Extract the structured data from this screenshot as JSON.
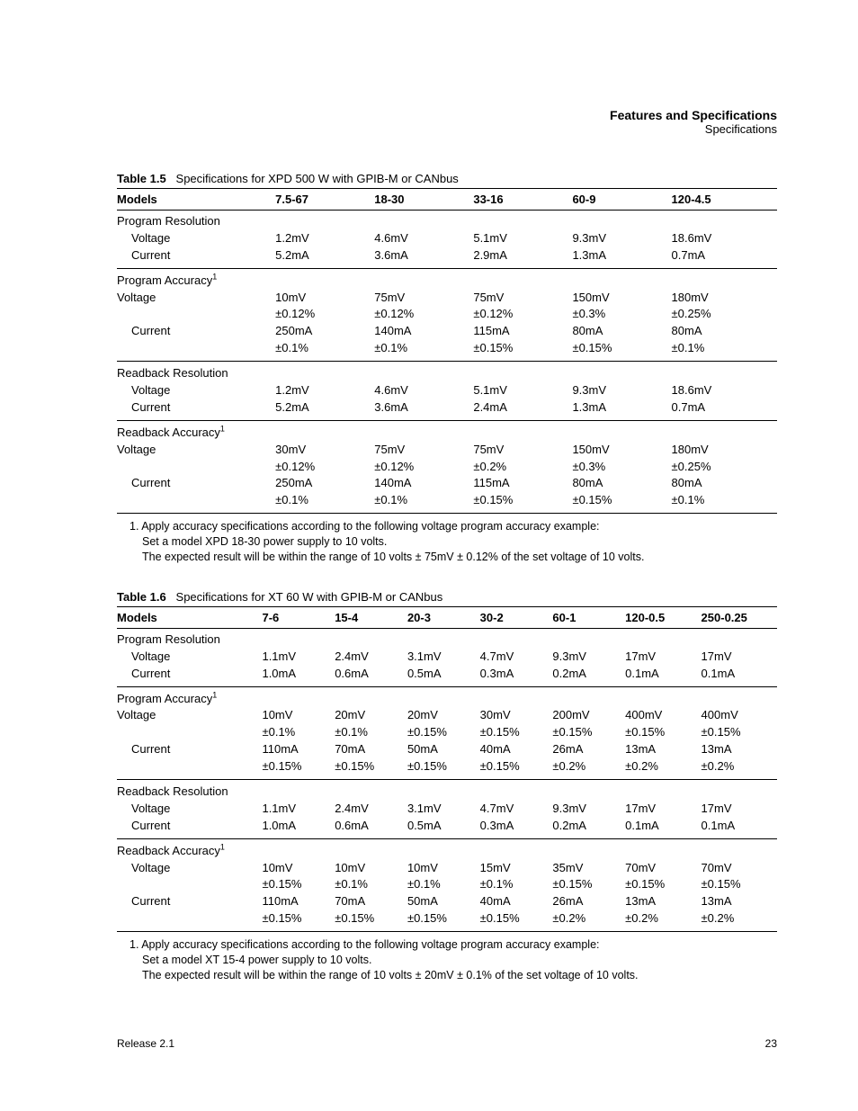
{
  "header": {
    "title": "Features and Specifications",
    "subtitle": "Specifications"
  },
  "table15": {
    "caption_prefix": "Table 1.5",
    "caption_text": "Specifications for XPD 500 W with GPIB-M or CANbus",
    "col_widths": [
      "24%",
      "15%",
      "15%",
      "15%",
      "15%",
      "16%"
    ],
    "headers": [
      "Models",
      "7.5-67",
      "18-30",
      "33-16",
      "60-9",
      "120-4.5"
    ],
    "sections": [
      {
        "title": "Program Resolution",
        "title_indent": false,
        "sup": "",
        "rows": [
          {
            "label": "Voltage",
            "indent": true,
            "lines": [
              [
                "1.2mV",
                "4.6mV",
                "5.1mV",
                "9.3mV",
                "18.6mV"
              ]
            ]
          },
          {
            "label": "Current",
            "indent": true,
            "lines": [
              [
                "5.2mA",
                "3.6mA",
                "2.9mA",
                "1.3mA",
                "0.7mA"
              ]
            ]
          }
        ],
        "sep": "light"
      },
      {
        "title": "Program Accuracy",
        "title_indent": false,
        "sup": "1",
        "rows": [
          {
            "label": "Voltage",
            "indent": false,
            "lines": [
              [
                "10mV",
                "75mV",
                "75mV",
                "150mV",
                "180mV"
              ],
              [
                "±0.12%",
                "±0.12%",
                "±0.12%",
                "±0.3%",
                "±0.25%"
              ]
            ]
          },
          {
            "label": "Current",
            "indent": true,
            "lines": [
              [
                "250mA",
                "140mA",
                "115mA",
                "80mA",
                "80mA"
              ],
              [
                "±0.1%",
                "±0.1%",
                "±0.15%",
                "±0.15%",
                "±0.1%"
              ]
            ]
          }
        ],
        "sep": "light"
      },
      {
        "title": "Readback Resolution",
        "title_indent": false,
        "sup": "",
        "rows": [
          {
            "label": "Voltage",
            "indent": true,
            "lines": [
              [
                "1.2mV",
                "4.6mV",
                "5.1mV",
                "9.3mV",
                "18.6mV"
              ]
            ]
          },
          {
            "label": "Current",
            "indent": true,
            "lines": [
              [
                "5.2mA",
                "3.6mA",
                "2.4mA",
                "1.3mA",
                "0.7mA"
              ]
            ]
          }
        ],
        "sep": "light"
      },
      {
        "title": "Readback Accuracy",
        "title_indent": false,
        "sup": "1",
        "rows": [
          {
            "label": "Voltage",
            "indent": false,
            "lines": [
              [
                "30mV",
                "75mV",
                "75mV",
                "150mV",
                "180mV"
              ],
              [
                "±0.12%",
                "±0.12%",
                "±0.2%",
                "±0.3%",
                "±0.25%"
              ]
            ]
          },
          {
            "label": "Current",
            "indent": true,
            "lines": [
              [
                "250mA",
                "140mA",
                "115mA",
                "80mA",
                "80mA"
              ],
              [
                "±0.1%",
                "±0.1%",
                "±0.15%",
                "±0.15%",
                "±0.1%"
              ]
            ]
          }
        ],
        "sep": "heavy"
      }
    ],
    "footnote": {
      "lead": "1.  Apply accuracy specifications according to the following voltage program accuracy example:",
      "lines": [
        "Set a model XPD 18-30 power supply to 10 volts.",
        "The expected result will be within the range of 10 volts ± 75mV ± 0.12% of the set voltage of 10 volts."
      ]
    }
  },
  "table16": {
    "caption_prefix": "Table 1.6",
    "caption_text": "Specifications for XT 60 W with GPIB-M or CANbus",
    "col_widths": [
      "22%",
      "11%",
      "11%",
      "11%",
      "11%",
      "11%",
      "11.5%",
      "11.5%"
    ],
    "headers": [
      "Models",
      "7-6",
      "15-4",
      "20-3",
      "30-2",
      "60-1",
      "120-0.5",
      "250-0.25"
    ],
    "sections": [
      {
        "title": "Program Resolution",
        "title_indent": false,
        "sup": "",
        "rows": [
          {
            "label": "Voltage",
            "indent": true,
            "lines": [
              [
                "1.1mV",
                "2.4mV",
                "3.1mV",
                "4.7mV",
                "9.3mV",
                "17mV",
                "17mV"
              ]
            ]
          },
          {
            "label": "Current",
            "indent": true,
            "lines": [
              [
                "1.0mA",
                "0.6mA",
                "0.5mA",
                "0.3mA",
                "0.2mA",
                "0.1mA",
                "0.1mA"
              ]
            ]
          }
        ],
        "sep": "light"
      },
      {
        "title": "Program Accuracy",
        "title_indent": false,
        "sup": "1",
        "rows": [
          {
            "label": "Voltage",
            "indent": false,
            "lines": [
              [
                "10mV",
                "20mV",
                "20mV",
                "30mV",
                "200mV",
                "400mV",
                "400mV"
              ],
              [
                "±0.1%",
                "±0.1%",
                "±0.15%",
                "±0.15%",
                "±0.15%",
                "±0.15%",
                "±0.15%"
              ]
            ]
          },
          {
            "label": "Current",
            "indent": true,
            "lines": [
              [
                "110mA",
                "70mA",
                "50mA",
                "40mA",
                "26mA",
                "13mA",
                "13mA"
              ],
              [
                "±0.15%",
                "±0.15%",
                "±0.15%",
                "±0.15%",
                "±0.2%",
                "±0.2%",
                "±0.2%"
              ]
            ]
          }
        ],
        "sep": "light"
      },
      {
        "title": "Readback Resolution",
        "title_indent": false,
        "sup": "",
        "rows": [
          {
            "label": "Voltage",
            "indent": true,
            "lines": [
              [
                "1.1mV",
                "2.4mV",
                "3.1mV",
                "4.7mV",
                "9.3mV",
                "17mV",
                "17mV"
              ]
            ]
          },
          {
            "label": "Current",
            "indent": true,
            "lines": [
              [
                "1.0mA",
                "0.6mA",
                "0.5mA",
                "0.3mA",
                "0.2mA",
                "0.1mA",
                "0.1mA"
              ]
            ]
          }
        ],
        "sep": "light"
      },
      {
        "title": "Readback Accuracy",
        "title_indent": false,
        "sup": "1",
        "rows": [
          {
            "label": "Voltage",
            "indent": true,
            "lines": [
              [
                "10mV",
                "10mV",
                "10mV",
                "15mV",
                "35mV",
                "70mV",
                "70mV"
              ],
              [
                "±0.15%",
                "±0.1%",
                "±0.1%",
                "±0.1%",
                "±0.15%",
                "±0.15%",
                "±0.15%"
              ]
            ]
          },
          {
            "label": "Current",
            "indent": true,
            "lines": [
              [
                "110mA",
                "70mA",
                "50mA",
                "40mA",
                "26mA",
                "13mA",
                "13mA"
              ],
              [
                "±0.15%",
                "±0.15%",
                "±0.15%",
                "±0.15%",
                "±0.2%",
                "±0.2%",
                "±0.2%"
              ]
            ]
          }
        ],
        "sep": "heavy"
      }
    ],
    "footnote": {
      "lead": "1.  Apply accuracy specifications according to the following voltage program accuracy example:",
      "lines": [
        "Set a model XT 15-4 power supply to 10 volts.",
        "The expected result will be within the range of 10 volts ± 20mV ± 0.1% of the set voltage of 10 volts."
      ]
    }
  },
  "footer": {
    "release": "Release 2.1",
    "page": "23"
  }
}
